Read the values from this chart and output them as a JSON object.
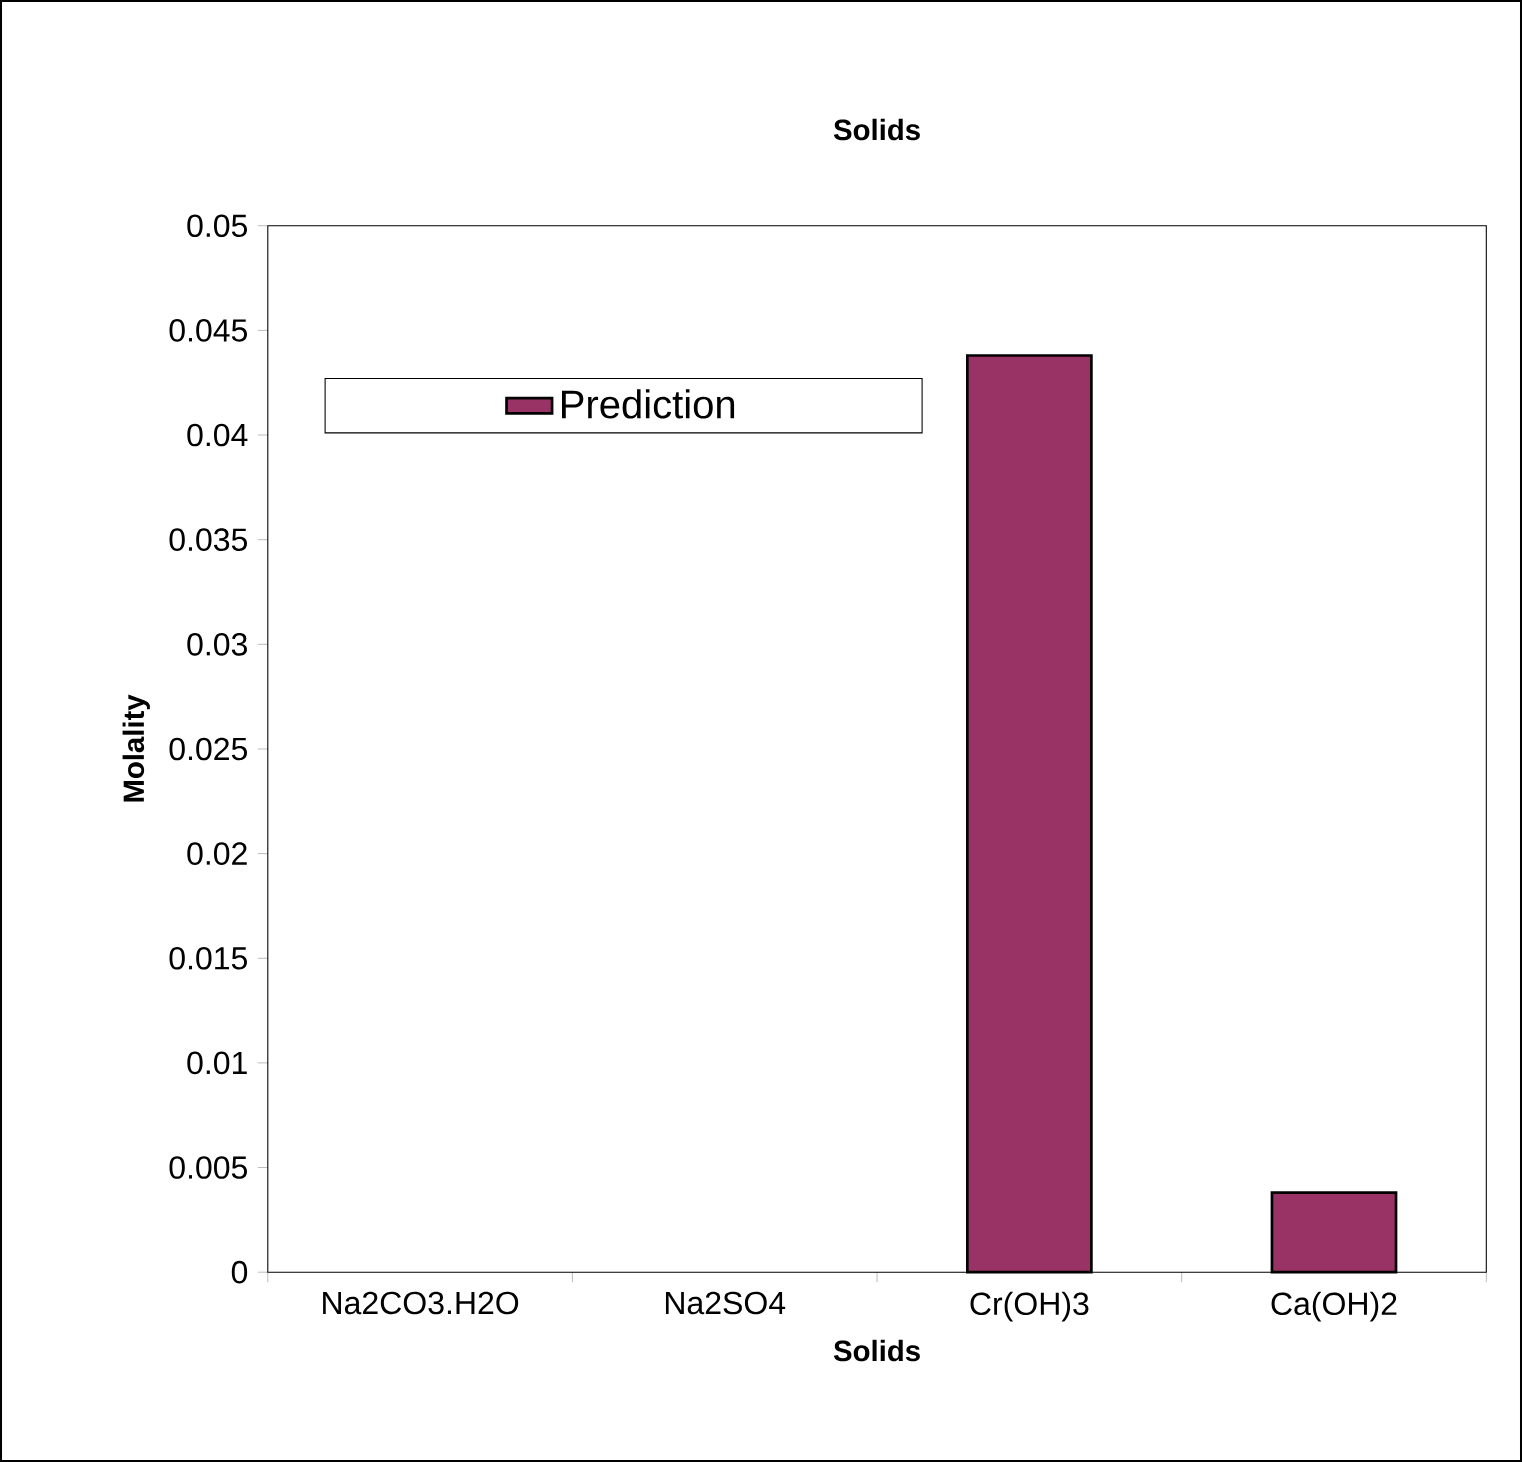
{
  "chart_data": {
    "type": "bar",
    "title": "Solids",
    "xlabel": "Solids",
    "ylabel": "Molality",
    "categories": [
      "Na2CO3.H2O",
      "Na2SO4",
      "Cr(OH)3",
      "Ca(OH)2"
    ],
    "series": [
      {
        "name": "Prediction",
        "color": "#993366",
        "values": [
          null,
          null,
          0.0438,
          0.0038
        ]
      }
    ],
    "ylim": [
      0,
      0.05
    ],
    "yticks": [
      0,
      0.005,
      0.01,
      0.015,
      0.02,
      0.025,
      0.03,
      0.035,
      0.04,
      0.045,
      0.05
    ],
    "grid": false,
    "legend": "top left"
  }
}
